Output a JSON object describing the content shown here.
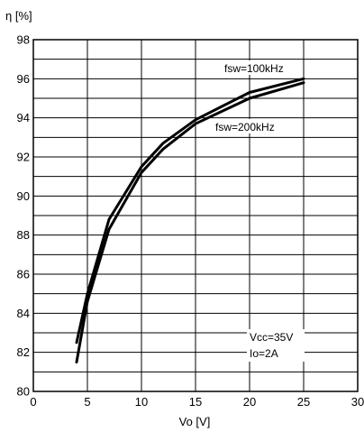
{
  "chart_data": {
    "type": "line",
    "title": "",
    "xlabel": "Vo  [V]",
    "ylabel": "η [%]",
    "xlim": [
      0,
      30
    ],
    "ylim": [
      80,
      98
    ],
    "xticks": [
      0,
      5,
      10,
      15,
      20,
      25,
      30
    ],
    "yticks": [
      80,
      82,
      84,
      86,
      88,
      90,
      92,
      94,
      96,
      98
    ],
    "grid": true,
    "series": [
      {
        "name": "fsw=100kHz",
        "x": [
          4,
          5,
          7,
          10,
          12,
          15,
          20,
          25
        ],
        "y": [
          82.5,
          85.0,
          88.8,
          91.5,
          92.7,
          93.9,
          95.3,
          96.0
        ]
      },
      {
        "name": "fsw=200kHz",
        "x": [
          4,
          5,
          7,
          10,
          12,
          15,
          20,
          25
        ],
        "y": [
          81.5,
          84.6,
          88.3,
          91.2,
          92.4,
          93.7,
          95.0,
          95.8
        ]
      }
    ],
    "annotations": [
      "Vcc=35V",
      "Io=2A"
    ]
  }
}
